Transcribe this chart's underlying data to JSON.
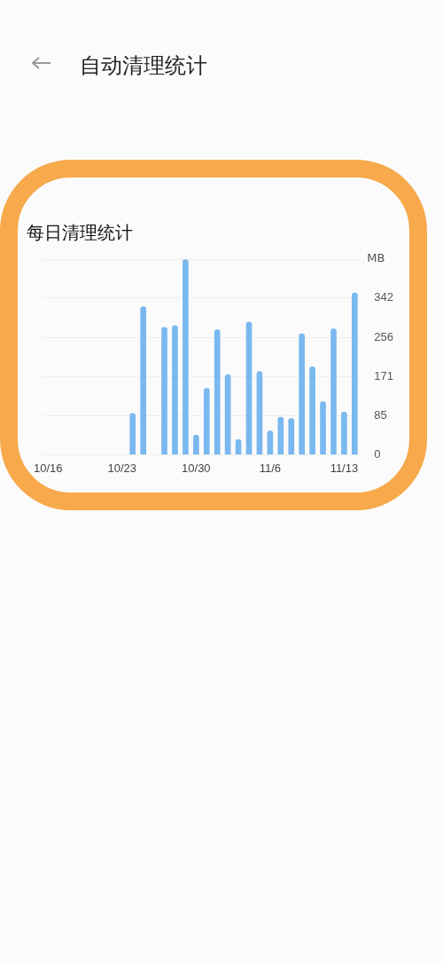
{
  "chart_data": {
    "type": "bar",
    "title": "每日清理统计",
    "ylabel": "MB",
    "annotations": [
      "自动清理统计"
    ],
    "categories": [
      "10/16",
      null,
      null,
      null,
      null,
      null,
      null,
      "10/23",
      null,
      null,
      null,
      null,
      null,
      null,
      "10/30",
      null,
      null,
      null,
      null,
      null,
      null,
      "11/6",
      null,
      null,
      null,
      null,
      null,
      null,
      "11/13",
      null
    ],
    "values": [
      null,
      null,
      null,
      null,
      null,
      null,
      null,
      null,
      90,
      323,
      null,
      278,
      282,
      426,
      43,
      145,
      273,
      175,
      33,
      290,
      182,
      52,
      82,
      79,
      264,
      192,
      116,
      275,
      93,
      353
    ],
    "color": "#7ab8f0",
    "ylim": [
      0,
      427
    ],
    "yticks": [
      0,
      85,
      171,
      256,
      342,
      {
        "value": 427,
        "label": null
      }
    ],
    "grid": "y"
  }
}
